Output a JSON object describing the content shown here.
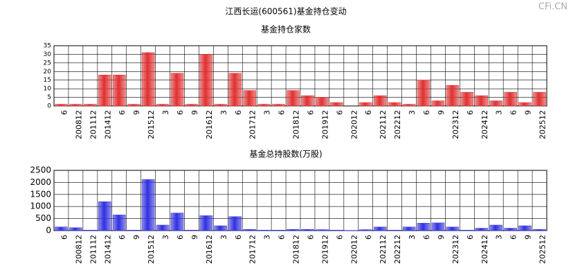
{
  "title": "江西长运(600561)基金持仓变动",
  "watermark": "CFi.CN",
  "chart_data": [
    {
      "type": "bar",
      "title": "基金持仓家数",
      "categories": [
        "6",
        "200812",
        "201112",
        "201412",
        "6",
        "9",
        "201512",
        "3",
        "6",
        "9",
        "201612",
        "3",
        "6",
        "201712",
        "3",
        "6",
        "201812",
        "6",
        "201912",
        "6",
        "202012",
        "6",
        "202112",
        "202212",
        "3",
        "6",
        "9",
        "202312",
        "6",
        "202412",
        "3",
        "6",
        "9",
        "202512"
      ],
      "values": [
        1,
        1,
        1,
        18,
        18,
        1,
        31,
        1,
        19,
        1,
        30,
        1,
        19,
        9,
        1,
        1,
        9,
        6,
        5,
        2,
        0,
        2,
        6,
        2,
        1,
        15,
        3,
        12,
        8,
        6,
        3,
        8,
        2,
        8
      ],
      "color": "#e03030",
      "ylim": [
        0,
        35
      ],
      "yticks": [
        0,
        5,
        10,
        15,
        20,
        25,
        30,
        35
      ],
      "grid": true
    },
    {
      "type": "bar",
      "title": "基金总持股数(万股)",
      "categories": [
        "6",
        "200812",
        "201112",
        "201412",
        "6",
        "9",
        "201512",
        "3",
        "6",
        "9",
        "201612",
        "3",
        "6",
        "201712",
        "3",
        "6",
        "201812",
        "6",
        "201912",
        "6",
        "202012",
        "6",
        "202112",
        "202212",
        "3",
        "6",
        "9",
        "202312",
        "6",
        "202412",
        "3",
        "6",
        "9",
        "202512"
      ],
      "values": [
        150,
        120,
        20,
        1200,
        650,
        20,
        2120,
        230,
        730,
        20,
        620,
        200,
        580,
        50,
        20,
        20,
        50,
        50,
        40,
        20,
        10,
        40,
        150,
        20,
        150,
        310,
        320,
        150,
        20,
        100,
        230,
        100,
        200,
        50
      ],
      "color": "#3030e0",
      "ylim": [
        0,
        2500
      ],
      "yticks": [
        0,
        500,
        1000,
        1500,
        2000,
        2500
      ],
      "grid": true
    }
  ]
}
